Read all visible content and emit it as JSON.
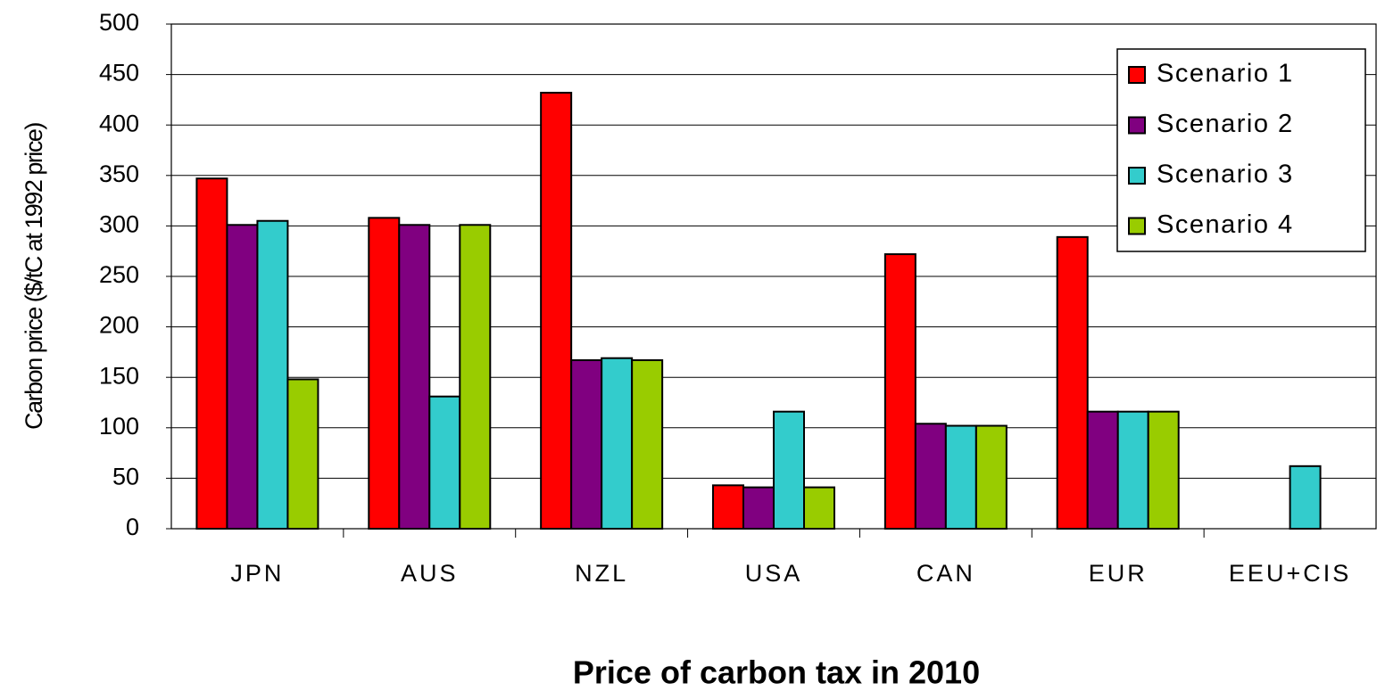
{
  "chart_data": {
    "type": "bar",
    "xlabel": "Price of carbon tax in 2010",
    "ylabel": "Carbon price ($/tC at  1992 price)",
    "categories": [
      "JPN",
      "AUS",
      "NZL",
      "USA",
      "CAN",
      "EUR",
      "EEU+CIS"
    ],
    "series": [
      {
        "name": "Scenario 1",
        "color": "#ff0000",
        "values": [
          347,
          308,
          432,
          43,
          272,
          289,
          null
        ]
      },
      {
        "name": "Scenario 2",
        "color": "#800080",
        "values": [
          301,
          301,
          167,
          41,
          104,
          116,
          null
        ]
      },
      {
        "name": "Scenario 3",
        "color": "#33cccc",
        "values": [
          305,
          131,
          169,
          116,
          102,
          116,
          62
        ]
      },
      {
        "name": "Scenario 4",
        "color": "#99cc00",
        "values": [
          148,
          301,
          167,
          41,
          102,
          116,
          null
        ]
      }
    ],
    "ylim": [
      0,
      500
    ],
    "yticks": [
      0,
      50,
      100,
      150,
      200,
      250,
      300,
      350,
      400,
      450,
      500
    ],
    "grid": true,
    "legend": "upper right"
  }
}
